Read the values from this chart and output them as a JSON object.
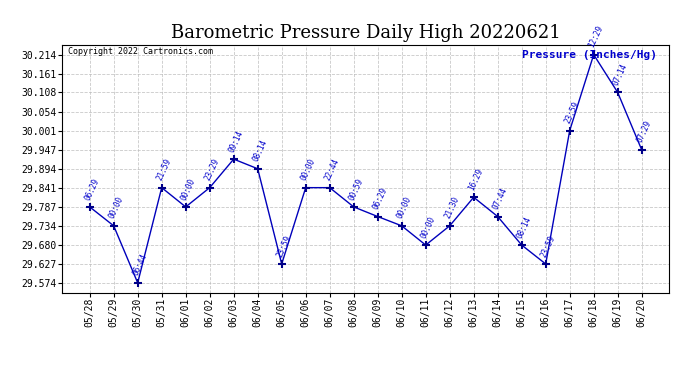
{
  "title": "Barometric Pressure Daily High 20220621",
  "ylabel": "Pressure (Inches/Hg)",
  "copyright": "Copyright 2022 Cartronics.com",
  "dates": [
    "05/28",
    "05/29",
    "05/30",
    "05/31",
    "06/01",
    "06/02",
    "06/03",
    "06/04",
    "06/05",
    "06/06",
    "06/07",
    "06/08",
    "06/09",
    "06/10",
    "06/11",
    "06/12",
    "06/13",
    "06/14",
    "06/15",
    "06/16",
    "06/17",
    "06/18",
    "06/19",
    "06/20"
  ],
  "values": [
    29.787,
    29.734,
    29.574,
    29.841,
    29.787,
    29.841,
    29.921,
    29.894,
    29.627,
    29.841,
    29.841,
    29.787,
    29.76,
    29.734,
    29.68,
    29.734,
    29.814,
    29.76,
    29.68,
    29.627,
    30.001,
    30.214,
    30.108,
    29.947
  ],
  "times": [
    "06:29",
    "00:00",
    "06:44",
    "21:59",
    "00:00",
    "23:29",
    "09:14",
    "08:14",
    "23:59",
    "00:00",
    "22:44",
    "00:59",
    "06:29",
    "00:00",
    "00:00",
    "21:30",
    "16:29",
    "07:44",
    "08:14",
    "23:59",
    "23:59",
    "12:29",
    "07:14",
    "07:29"
  ],
  "line_color": "#0000bb",
  "marker_color": "#000088",
  "label_color": "#0000cc",
  "grid_color": "#bbbbbb",
  "bg_color": "#ffffff",
  "title_fontsize": 13,
  "ylim_min": 29.547,
  "ylim_max": 30.241,
  "ytick_values": [
    29.574,
    29.627,
    29.68,
    29.734,
    29.787,
    29.841,
    29.894,
    29.947,
    30.001,
    30.054,
    30.108,
    30.161,
    30.214
  ]
}
